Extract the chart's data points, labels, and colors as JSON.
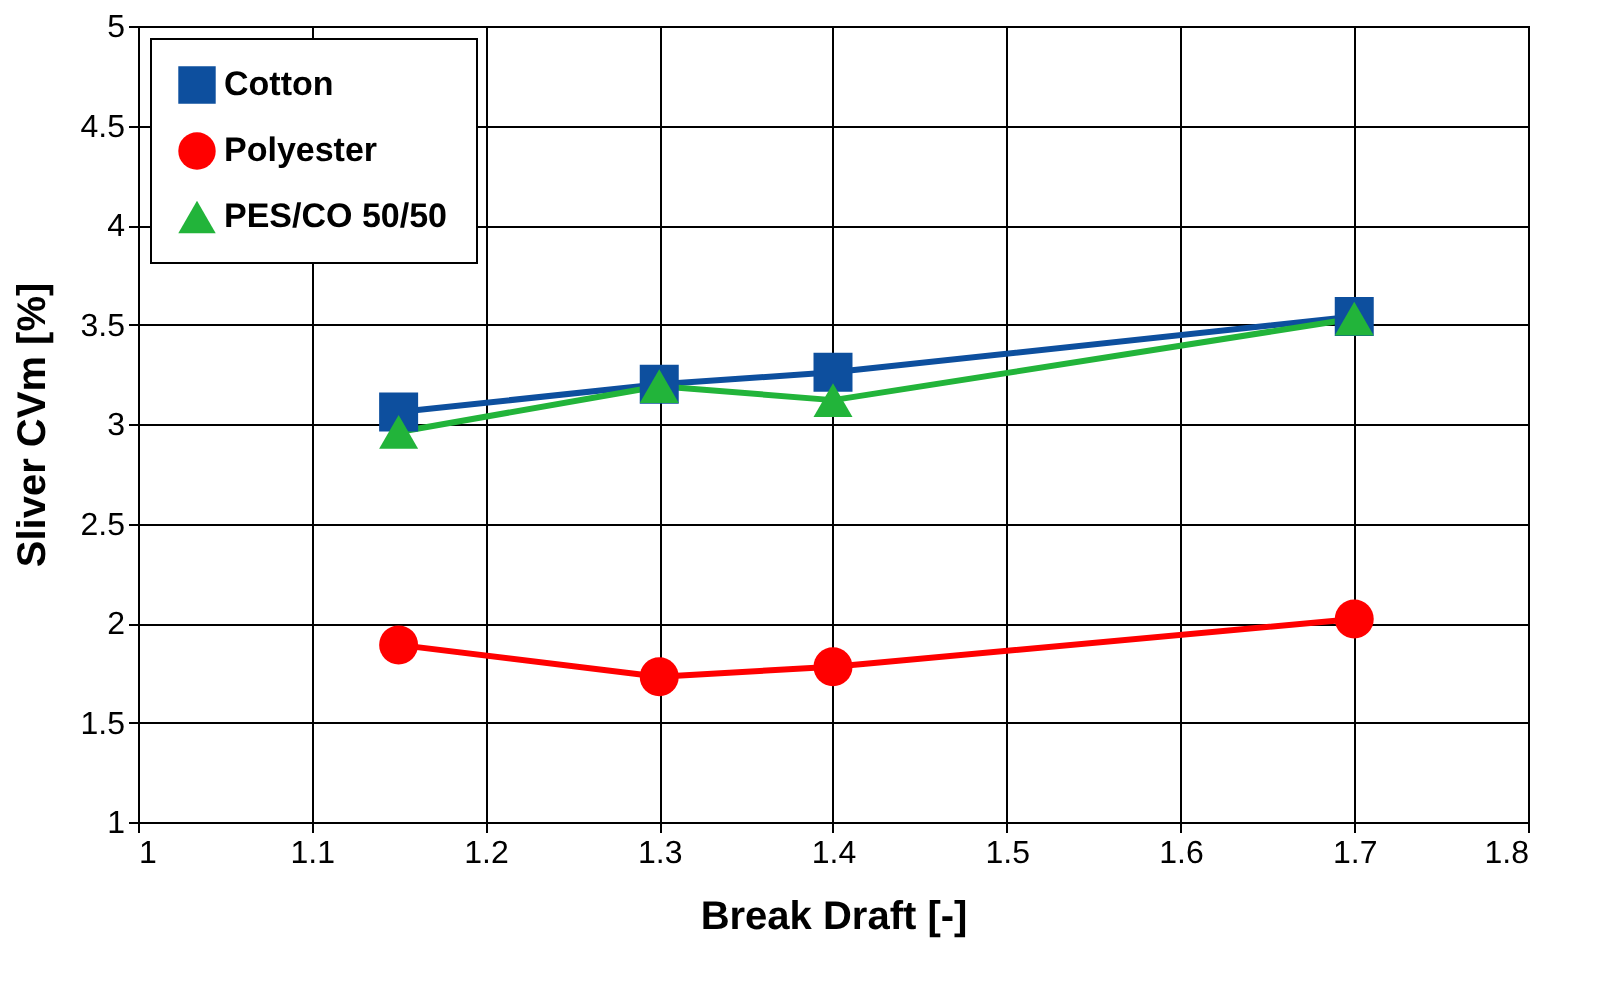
{
  "chart_data": {
    "type": "line",
    "xlabel": "Break Draft [-]",
    "ylabel": "Sliver CVm [%]",
    "x": [
      1.15,
      1.3,
      1.4,
      1.7
    ],
    "series": [
      {
        "name": "Cotton",
        "color": "#0d4f9e",
        "marker": "square",
        "values": [
          3.06,
          3.2,
          3.26,
          3.54
        ]
      },
      {
        "name": "Polyester",
        "color": "#ff0000",
        "marker": "circle",
        "values": [
          1.89,
          1.73,
          1.78,
          2.02
        ]
      },
      {
        "name": "PES/CO 50/50",
        "color": "#22b43a",
        "marker": "triangle",
        "values": [
          2.96,
          3.19,
          3.12,
          3.53
        ]
      }
    ],
    "xlim": [
      1,
      1.8
    ],
    "xticks": [
      1,
      1.1,
      1.2,
      1.3,
      1.4,
      1.5,
      1.6,
      1.7,
      1.8
    ],
    "ylim": [
      1,
      5
    ],
    "yticks": [
      1,
      1.5,
      2,
      2.5,
      3,
      3.5,
      4,
      4.5,
      5
    ],
    "grid": true,
    "legend": "top left",
    "line_style": "solid"
  }
}
